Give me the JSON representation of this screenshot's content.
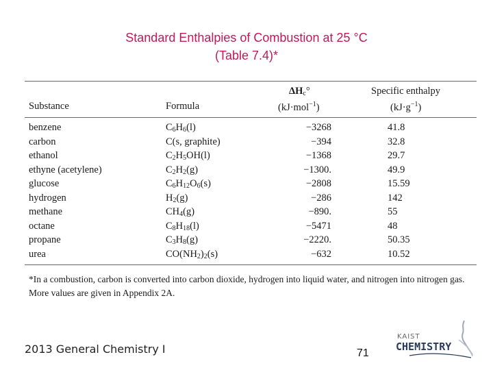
{
  "slide": {
    "title_line1": "Standard Enthalpies of Combustion at 25 °C",
    "title_line2": "(Table 7.4)*"
  },
  "table": {
    "headers": {
      "substance": "Substance",
      "formula": "Formula",
      "dh_symbol": "ΔH",
      "dh_sub": "c",
      "dh_sup": "°",
      "dh_unit_pre": "(kJ·mol",
      "dh_unit_sup": "−1",
      "dh_unit_post": ")",
      "se_line1": "Specific enthalpy",
      "se_unit_pre": "(kJ·g",
      "se_unit_sup": "−1",
      "se_unit_post": ")"
    },
    "rows": [
      {
        "substance": "benzene",
        "formula_html": "C<sub>6</sub>H<sub>6</sub>(l)",
        "dh": "−3268",
        "se": "41.8"
      },
      {
        "substance": "carbon",
        "formula_html": "C(s, graphite)",
        "dh": "−394",
        "se": "32.8"
      },
      {
        "substance": "ethanol",
        "formula_html": "C<sub>2</sub>H<sub>5</sub>OH(l)",
        "dh": "−1368",
        "se": "29.7"
      },
      {
        "substance": "ethyne (acetylene)",
        "formula_html": "C<sub>2</sub>H<sub>2</sub>(g)",
        "dh": "−1300.",
        "se": "49.9"
      },
      {
        "substance": "glucose",
        "formula_html": "C<sub>6</sub>H<sub>12</sub>O<sub>6</sub>(s)",
        "dh": "−2808",
        "se": "15.59"
      },
      {
        "substance": "hydrogen",
        "formula_html": "H<sub>2</sub>(g)",
        "dh": "−286",
        "se": "142"
      },
      {
        "substance": "methane",
        "formula_html": "CH<sub>4</sub>(g)",
        "dh": "−890.",
        "se": "55"
      },
      {
        "substance": "octane",
        "formula_html": "C<sub>8</sub>H<sub>18</sub>(l)",
        "dh": "−5471",
        "se": "48"
      },
      {
        "substance": "propane",
        "formula_html": "C<sub>3</sub>H<sub>8</sub>(g)",
        "dh": "−2220.",
        "se": "50.35"
      },
      {
        "substance": "urea",
        "formula_html": "CO(NH<sub>2</sub>)<sub>2</sub>(s)",
        "dh": "−632",
        "se": "10.52"
      }
    ],
    "footnote": "*In a combustion, carbon is converted into carbon dioxide, hydrogen into liquid water, and nitrogen into nitrogen gas. More values are given in Appendix 2A."
  },
  "footer": {
    "course": "2013 General Chemistry I",
    "page_number": "71",
    "logo_top": "KAIST",
    "logo_main": "CHEMISTRY"
  },
  "colors": {
    "title": "#c0185a",
    "logo_text": "#2a3a5a"
  }
}
